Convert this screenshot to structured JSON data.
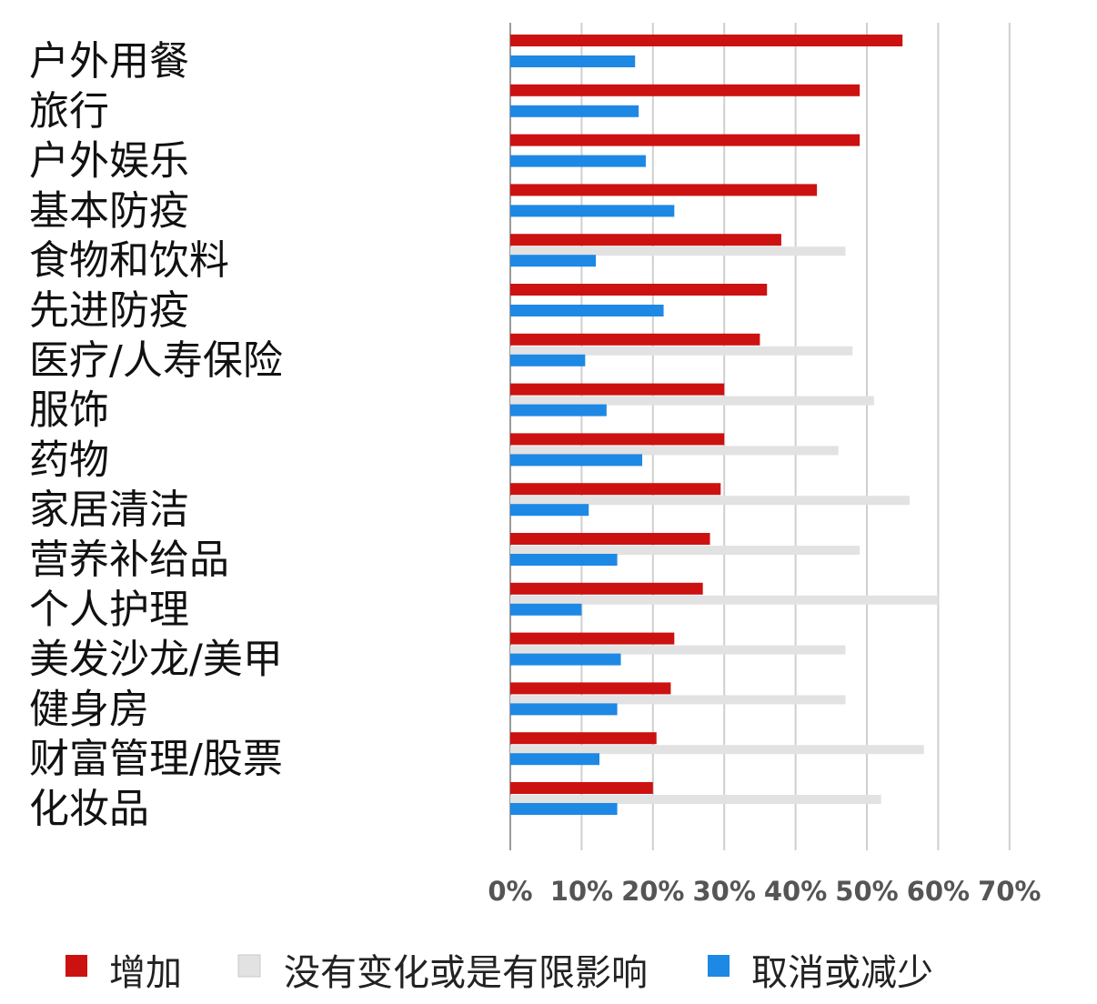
{
  "chart_data": {
    "type": "bar",
    "orientation": "horizontal",
    "categories": [
      "户外用餐",
      "旅行",
      "户外娱乐",
      "基本防疫",
      "食物和饮料",
      "先进防疫",
      "医疗/人寿保险",
      "服饰",
      "药物",
      "家居清洁",
      "营养补给品",
      "个人护理",
      "美发沙龙/美甲",
      "健身房",
      "财富管理/股票",
      "化妆品"
    ],
    "series": [
      {
        "name": "增加",
        "color": "#cc1111",
        "values": [
          55,
          49,
          49,
          43,
          38,
          36,
          35,
          30,
          30,
          29.5,
          28,
          27,
          23,
          22.5,
          20.5,
          20
        ]
      },
      {
        "name": "没有变化或是有限影响",
        "color": "#e2e2e2",
        "values": [
          null,
          null,
          null,
          null,
          47,
          null,
          48,
          51,
          46,
          56,
          49,
          60,
          47,
          47,
          58,
          52
        ]
      },
      {
        "name": "取消或减少",
        "color": "#1e88e5",
        "values": [
          17.5,
          18,
          19,
          23,
          12,
          21.5,
          10.5,
          13.5,
          18.5,
          11,
          15,
          10,
          15.5,
          15,
          12.5,
          15
        ]
      }
    ],
    "xticks": [
      "0%",
      "10%",
      "20%",
      "30%",
      "40%",
      "50%",
      "60%",
      "70%"
    ],
    "xlim": [
      0,
      70
    ],
    "grid": true,
    "legend_position": "bottom"
  }
}
